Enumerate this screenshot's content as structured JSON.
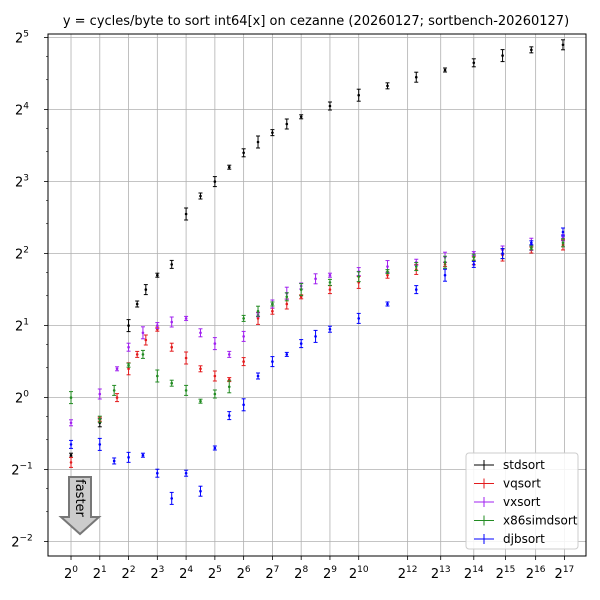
{
  "chart_data": {
    "type": "scatter",
    "title": "y = cycles/byte to sort int64[x] on cezanne (20260127; sortbench-20260127)",
    "x_scale": "log2",
    "y_scale": "log2",
    "xlim_log2": [
      -0.8,
      17.9
    ],
    "ylim_log2": [
      -2.2,
      5.05
    ],
    "x_ticks": [
      {
        "base": "2",
        "exp": "0",
        "log2": 0
      },
      {
        "base": "2",
        "exp": "1",
        "log2": 1
      },
      {
        "base": "2",
        "exp": "2",
        "log2": 2
      },
      {
        "base": "2",
        "exp": "3",
        "log2": 3
      },
      {
        "base": "2",
        "exp": "4",
        "log2": 4
      },
      {
        "base": "2",
        "exp": "5",
        "log2": 5
      },
      {
        "base": "2",
        "exp": "6",
        "log2": 6
      },
      {
        "base": "2",
        "exp": "7",
        "log2": 7
      },
      {
        "base": "2",
        "exp": "8",
        "log2": 8
      },
      {
        "base": "2",
        "exp": "9",
        "log2": 9
      },
      {
        "base": "2",
        "exp": "10",
        "log2": 10
      },
      {
        "base": "2",
        "exp": "12",
        "log2": 11.7
      },
      {
        "base": "2",
        "exp": "13",
        "log2": 12.85
      },
      {
        "base": "2",
        "exp": "14",
        "log2": 14
      },
      {
        "base": "2",
        "exp": "15",
        "log2": 15.1
      },
      {
        "base": "2",
        "exp": "16",
        "log2": 16.15
      },
      {
        "base": "2",
        "exp": "17",
        "log2": 17.15
      }
    ],
    "y_ticks": [
      {
        "base": "2",
        "exp": "−2",
        "log2": -2
      },
      {
        "base": "2",
        "exp": "−1",
        "log2": -1
      },
      {
        "base": "2",
        "exp": "0",
        "log2": 0
      },
      {
        "base": "2",
        "exp": "1",
        "log2": 1
      },
      {
        "base": "2",
        "exp": "2",
        "log2": 2
      },
      {
        "base": "2",
        "exp": "3",
        "log2": 3
      },
      {
        "base": "2",
        "exp": "4",
        "log2": 4
      },
      {
        "base": "2",
        "exp": "5",
        "log2": 5
      }
    ],
    "grid": true,
    "legend_position": "lower-right",
    "series": [
      {
        "name": "stdsort",
        "color": "#000000",
        "points_log2": [
          [
            0,
            -0.8
          ],
          [
            1,
            -0.35
          ],
          [
            2,
            1.0
          ],
          [
            2.3,
            1.3
          ],
          [
            2.6,
            1.5
          ],
          [
            3,
            1.7
          ],
          [
            3.5,
            1.85
          ],
          [
            4,
            2.55
          ],
          [
            4.5,
            2.8
          ],
          [
            5,
            3.0
          ],
          [
            5.5,
            3.2
          ],
          [
            6,
            3.4
          ],
          [
            6.5,
            3.55
          ],
          [
            7,
            3.68
          ],
          [
            7.5,
            3.8
          ],
          [
            8,
            3.9
          ],
          [
            9,
            4.05
          ],
          [
            10,
            4.2
          ],
          [
            11,
            4.33
          ],
          [
            12,
            4.45
          ],
          [
            13,
            4.55
          ],
          [
            14,
            4.65
          ],
          [
            15,
            4.75
          ],
          [
            16,
            4.83
          ],
          [
            17.1,
            4.9
          ]
        ]
      },
      {
        "name": "vqsort",
        "color": "#e31a1c",
        "points_log2": [
          [
            0,
            -0.9
          ],
          [
            1,
            -0.3
          ],
          [
            1.6,
            0
          ],
          [
            2,
            0.4
          ],
          [
            2.3,
            0.6
          ],
          [
            2.6,
            0.8
          ],
          [
            3,
            0.95
          ],
          [
            3.5,
            0.7
          ],
          [
            4,
            0.55
          ],
          [
            4.5,
            0.4
          ],
          [
            5,
            0.3
          ],
          [
            5.5,
            0.25
          ],
          [
            6,
            0.5
          ],
          [
            6.5,
            1.1
          ],
          [
            7,
            1.2
          ],
          [
            7.5,
            1.3
          ],
          [
            8,
            1.4
          ],
          [
            9,
            1.5
          ],
          [
            10,
            1.6
          ],
          [
            11,
            1.7
          ],
          [
            12,
            1.78
          ],
          [
            13,
            1.85
          ],
          [
            14,
            1.9
          ],
          [
            15,
            1.98
          ],
          [
            16,
            2.05
          ],
          [
            17.1,
            2.12
          ]
        ]
      },
      {
        "name": "vxsort",
        "color": "#a020f0",
        "points_log2": [
          [
            0,
            -0.35
          ],
          [
            1,
            0.05
          ],
          [
            1.6,
            0.4
          ],
          [
            2,
            0.7
          ],
          [
            2.5,
            0.9
          ],
          [
            3,
            1.0
          ],
          [
            3.5,
            1.05
          ],
          [
            4,
            1.1
          ],
          [
            4.5,
            0.9
          ],
          [
            5,
            0.75
          ],
          [
            5.5,
            0.6
          ],
          [
            6,
            0.85
          ],
          [
            6.5,
            1.15
          ],
          [
            7,
            1.3
          ],
          [
            7.5,
            1.45
          ],
          [
            8,
            1.55
          ],
          [
            8.5,
            1.65
          ],
          [
            9,
            1.7
          ],
          [
            10,
            1.75
          ],
          [
            11,
            1.82
          ],
          [
            12,
            1.88
          ],
          [
            13,
            1.95
          ],
          [
            14,
            2.0
          ],
          [
            15,
            2.05
          ],
          [
            16,
            2.13
          ],
          [
            17.1,
            2.22
          ]
        ]
      },
      {
        "name": "x86simdsort",
        "color": "#228b22",
        "points_log2": [
          [
            0,
            0
          ],
          [
            1,
            -0.3
          ],
          [
            1.5,
            0.1
          ],
          [
            2,
            0.45
          ],
          [
            2.5,
            0.6
          ],
          [
            3,
            0.3
          ],
          [
            3.5,
            0.2
          ],
          [
            4,
            0.1
          ],
          [
            4.5,
            -0.05
          ],
          [
            5,
            0.05
          ],
          [
            5.5,
            0.15
          ],
          [
            6,
            1.1
          ],
          [
            6.5,
            1.2
          ],
          [
            7,
            1.3
          ],
          [
            7.5,
            1.4
          ],
          [
            8,
            1.5
          ],
          [
            9,
            1.6
          ],
          [
            10,
            1.68
          ],
          [
            11,
            1.75
          ],
          [
            12,
            1.82
          ],
          [
            13,
            1.88
          ],
          [
            14,
            1.95
          ],
          [
            15,
            2.0
          ],
          [
            16,
            2.08
          ],
          [
            17.1,
            2.15
          ]
        ]
      },
      {
        "name": "djbsort",
        "color": "#0000ff",
        "points_log2": [
          [
            0,
            -0.65
          ],
          [
            1,
            -0.65
          ],
          [
            1.5,
            -0.88
          ],
          [
            2,
            -0.83
          ],
          [
            2.5,
            -0.8
          ],
          [
            3,
            -1.05
          ],
          [
            3.5,
            -1.4
          ],
          [
            4,
            -1.05
          ],
          [
            4.5,
            -1.3
          ],
          [
            5,
            -0.7
          ],
          [
            5.5,
            -0.25
          ],
          [
            6,
            -0.1
          ],
          [
            6.5,
            0.3
          ],
          [
            7,
            0.5
          ],
          [
            7.5,
            0.6
          ],
          [
            8,
            0.75
          ],
          [
            8.5,
            0.85
          ],
          [
            9,
            0.95
          ],
          [
            10,
            1.1
          ],
          [
            11,
            1.3
          ],
          [
            12,
            1.5
          ],
          [
            13,
            1.7
          ],
          [
            14,
            1.85
          ],
          [
            15,
            2.0
          ],
          [
            16,
            2.15
          ],
          [
            17.1,
            2.3
          ]
        ]
      }
    ],
    "annotation": {
      "text": "faster"
    }
  }
}
